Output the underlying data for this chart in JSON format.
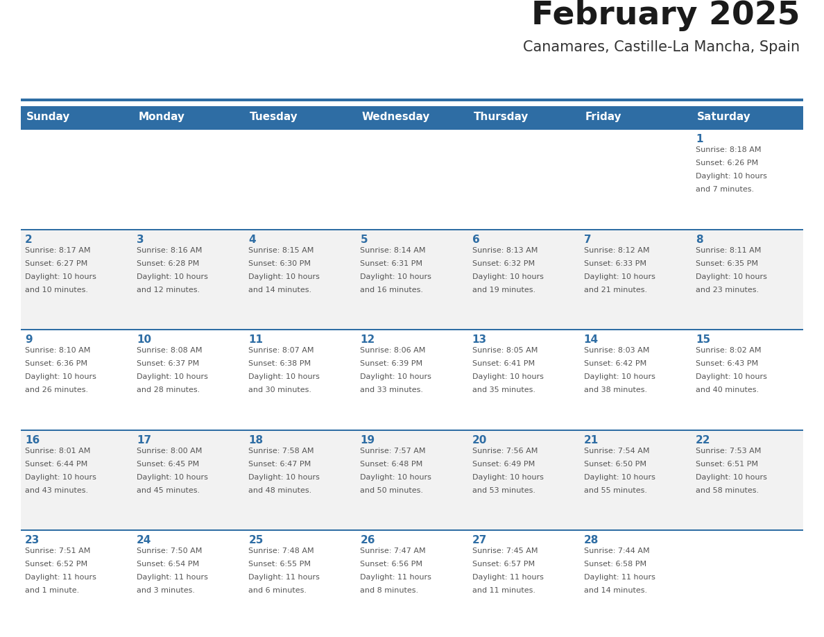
{
  "title": "February 2025",
  "subtitle": "Canamares, Castille-La Mancha, Spain",
  "header_bg": "#2E6DA4",
  "header_text_color": "#FFFFFF",
  "day_names": [
    "Sunday",
    "Monday",
    "Tuesday",
    "Wednesday",
    "Thursday",
    "Friday",
    "Saturday"
  ],
  "background_color": "#FFFFFF",
  "cell_bg_white": "#FFFFFF",
  "cell_bg_gray": "#F2F2F2",
  "separator_color": "#2E6DA4",
  "day_number_color": "#2E6DA4",
  "text_color": "#555555",
  "logo_general_color": "#1a1a1a",
  "logo_blue_color": "#2E6DA4",
  "title_color": "#1a1a1a",
  "subtitle_color": "#333333",
  "weeks": [
    [
      {
        "day": null,
        "info": ""
      },
      {
        "day": null,
        "info": ""
      },
      {
        "day": null,
        "info": ""
      },
      {
        "day": null,
        "info": ""
      },
      {
        "day": null,
        "info": ""
      },
      {
        "day": null,
        "info": ""
      },
      {
        "day": 1,
        "info": "Sunrise: 8:18 AM\nSunset: 6:26 PM\nDaylight: 10 hours\nand 7 minutes."
      }
    ],
    [
      {
        "day": 2,
        "info": "Sunrise: 8:17 AM\nSunset: 6:27 PM\nDaylight: 10 hours\nand 10 minutes."
      },
      {
        "day": 3,
        "info": "Sunrise: 8:16 AM\nSunset: 6:28 PM\nDaylight: 10 hours\nand 12 minutes."
      },
      {
        "day": 4,
        "info": "Sunrise: 8:15 AM\nSunset: 6:30 PM\nDaylight: 10 hours\nand 14 minutes."
      },
      {
        "day": 5,
        "info": "Sunrise: 8:14 AM\nSunset: 6:31 PM\nDaylight: 10 hours\nand 16 minutes."
      },
      {
        "day": 6,
        "info": "Sunrise: 8:13 AM\nSunset: 6:32 PM\nDaylight: 10 hours\nand 19 minutes."
      },
      {
        "day": 7,
        "info": "Sunrise: 8:12 AM\nSunset: 6:33 PM\nDaylight: 10 hours\nand 21 minutes."
      },
      {
        "day": 8,
        "info": "Sunrise: 8:11 AM\nSunset: 6:35 PM\nDaylight: 10 hours\nand 23 minutes."
      }
    ],
    [
      {
        "day": 9,
        "info": "Sunrise: 8:10 AM\nSunset: 6:36 PM\nDaylight: 10 hours\nand 26 minutes."
      },
      {
        "day": 10,
        "info": "Sunrise: 8:08 AM\nSunset: 6:37 PM\nDaylight: 10 hours\nand 28 minutes."
      },
      {
        "day": 11,
        "info": "Sunrise: 8:07 AM\nSunset: 6:38 PM\nDaylight: 10 hours\nand 30 minutes."
      },
      {
        "day": 12,
        "info": "Sunrise: 8:06 AM\nSunset: 6:39 PM\nDaylight: 10 hours\nand 33 minutes."
      },
      {
        "day": 13,
        "info": "Sunrise: 8:05 AM\nSunset: 6:41 PM\nDaylight: 10 hours\nand 35 minutes."
      },
      {
        "day": 14,
        "info": "Sunrise: 8:03 AM\nSunset: 6:42 PM\nDaylight: 10 hours\nand 38 minutes."
      },
      {
        "day": 15,
        "info": "Sunrise: 8:02 AM\nSunset: 6:43 PM\nDaylight: 10 hours\nand 40 minutes."
      }
    ],
    [
      {
        "day": 16,
        "info": "Sunrise: 8:01 AM\nSunset: 6:44 PM\nDaylight: 10 hours\nand 43 minutes."
      },
      {
        "day": 17,
        "info": "Sunrise: 8:00 AM\nSunset: 6:45 PM\nDaylight: 10 hours\nand 45 minutes."
      },
      {
        "day": 18,
        "info": "Sunrise: 7:58 AM\nSunset: 6:47 PM\nDaylight: 10 hours\nand 48 minutes."
      },
      {
        "day": 19,
        "info": "Sunrise: 7:57 AM\nSunset: 6:48 PM\nDaylight: 10 hours\nand 50 minutes."
      },
      {
        "day": 20,
        "info": "Sunrise: 7:56 AM\nSunset: 6:49 PM\nDaylight: 10 hours\nand 53 minutes."
      },
      {
        "day": 21,
        "info": "Sunrise: 7:54 AM\nSunset: 6:50 PM\nDaylight: 10 hours\nand 55 minutes."
      },
      {
        "day": 22,
        "info": "Sunrise: 7:53 AM\nSunset: 6:51 PM\nDaylight: 10 hours\nand 58 minutes."
      }
    ],
    [
      {
        "day": 23,
        "info": "Sunrise: 7:51 AM\nSunset: 6:52 PM\nDaylight: 11 hours\nand 1 minute."
      },
      {
        "day": 24,
        "info": "Sunrise: 7:50 AM\nSunset: 6:54 PM\nDaylight: 11 hours\nand 3 minutes."
      },
      {
        "day": 25,
        "info": "Sunrise: 7:48 AM\nSunset: 6:55 PM\nDaylight: 11 hours\nand 6 minutes."
      },
      {
        "day": 26,
        "info": "Sunrise: 7:47 AM\nSunset: 6:56 PM\nDaylight: 11 hours\nand 8 minutes."
      },
      {
        "day": 27,
        "info": "Sunrise: 7:45 AM\nSunset: 6:57 PM\nDaylight: 11 hours\nand 11 minutes."
      },
      {
        "day": 28,
        "info": "Sunrise: 7:44 AM\nSunset: 6:58 PM\nDaylight: 11 hours\nand 14 minutes."
      },
      {
        "day": null,
        "info": ""
      }
    ]
  ]
}
